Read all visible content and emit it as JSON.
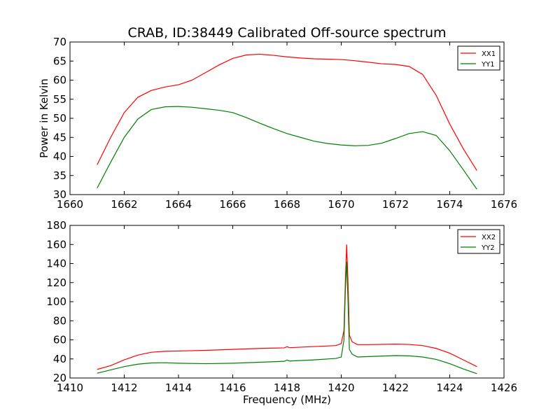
{
  "figure": {
    "title": "CRAB, ID:38449 Calibrated Off-source spectrum"
  },
  "colors": {
    "xx": "#ff0000",
    "yy": "#008000",
    "frame": "#000000",
    "background": "#ffffff"
  },
  "chart_data": [
    {
      "type": "line",
      "title": "CRAB, ID:38449 Calibrated Off-source spectrum",
      "xlabel": "",
      "ylabel": "Power in Kelvin",
      "xlim": [
        1660,
        1676
      ],
      "ylim": [
        30,
        70
      ],
      "xticks": [
        "1660",
        "1662",
        "1664",
        "1666",
        "1668",
        "1670",
        "1672",
        "1674",
        "1676"
      ],
      "yticks": [
        "30",
        "35",
        "40",
        "45",
        "50",
        "55",
        "60",
        "65",
        "70"
      ],
      "grid": false,
      "legend": "top-right",
      "series": [
        {
          "name": "XX1",
          "color": "#ff0000",
          "x": [
            1661.0,
            1661.5,
            1662.0,
            1662.5,
            1663.0,
            1663.5,
            1664.0,
            1664.5,
            1665.0,
            1665.5,
            1666.0,
            1666.5,
            1667.0,
            1667.5,
            1668.0,
            1668.5,
            1669.0,
            1669.5,
            1670.0,
            1670.5,
            1671.0,
            1671.5,
            1672.0,
            1672.5,
            1673.0,
            1673.5,
            1674.0,
            1674.5,
            1675.0
          ],
          "y": [
            37.8,
            45.0,
            51.5,
            55.5,
            57.3,
            58.2,
            58.8,
            60.0,
            62.0,
            64.0,
            65.7,
            66.6,
            66.8,
            66.5,
            66.1,
            65.8,
            65.6,
            65.5,
            65.4,
            65.1,
            64.7,
            64.3,
            64.1,
            63.6,
            61.5,
            56.0,
            48.5,
            42.0,
            36.3
          ]
        },
        {
          "name": "YY1",
          "color": "#008000",
          "x": [
            1661.0,
            1661.5,
            1662.0,
            1662.5,
            1663.0,
            1663.5,
            1664.0,
            1664.5,
            1665.0,
            1665.5,
            1666.0,
            1666.5,
            1667.0,
            1667.5,
            1668.0,
            1668.5,
            1669.0,
            1669.5,
            1670.0,
            1670.5,
            1671.0,
            1671.5,
            1672.0,
            1672.5,
            1673.0,
            1673.5,
            1674.0,
            1674.5,
            1675.0
          ],
          "y": [
            31.7,
            38.5,
            45.0,
            49.8,
            52.3,
            53.0,
            53.1,
            52.9,
            52.5,
            52.1,
            51.5,
            50.2,
            48.7,
            47.3,
            46.0,
            45.0,
            44.0,
            43.4,
            43.0,
            42.8,
            42.9,
            43.5,
            44.7,
            46.0,
            46.5,
            45.5,
            41.5,
            36.5,
            31.4
          ]
        }
      ]
    },
    {
      "type": "line",
      "title": "",
      "xlabel": "Frequency (MHz)",
      "ylabel": "",
      "xlim": [
        1410,
        1426
      ],
      "ylim": [
        20,
        180
      ],
      "xticks": [
        "1410",
        "1412",
        "1414",
        "1416",
        "1418",
        "1420",
        "1422",
        "1424",
        "1426"
      ],
      "yticks": [
        "20",
        "40",
        "60",
        "80",
        "100",
        "120",
        "140",
        "160",
        "180"
      ],
      "grid": false,
      "legend": "top-right",
      "series": [
        {
          "name": "XX2",
          "color": "#ff0000",
          "x": [
            1411.0,
            1411.5,
            1412.0,
            1412.5,
            1413.0,
            1413.5,
            1414.0,
            1415.0,
            1416.0,
            1417.0,
            1417.9,
            1418.0,
            1418.1,
            1419.0,
            1419.8,
            1420.0,
            1420.1,
            1420.15,
            1420.2,
            1420.25,
            1420.3,
            1420.4,
            1420.6,
            1421.0,
            1422.0,
            1422.5,
            1423.0,
            1423.5,
            1424.0,
            1424.5,
            1425.0
          ],
          "y": [
            29.0,
            33.0,
            39.0,
            44.0,
            47.0,
            48.0,
            48.3,
            49.0,
            50.0,
            51.0,
            51.6,
            52.8,
            51.8,
            53.0,
            54.0,
            56.0,
            70.0,
            120.0,
            160.0,
            120.0,
            65.0,
            58.0,
            55.0,
            55.0,
            55.5,
            55.2,
            54.0,
            51.0,
            46.0,
            39.0,
            32.0
          ]
        },
        {
          "name": "YY2",
          "color": "#008000",
          "x": [
            1411.0,
            1411.5,
            1412.0,
            1412.5,
            1413.0,
            1413.5,
            1414.0,
            1415.0,
            1416.0,
            1417.0,
            1417.9,
            1418.0,
            1418.1,
            1419.0,
            1419.8,
            1420.0,
            1420.1,
            1420.15,
            1420.2,
            1420.25,
            1420.3,
            1420.4,
            1420.6,
            1421.0,
            1422.0,
            1422.5,
            1423.0,
            1423.5,
            1424.0,
            1424.5,
            1425.0
          ],
          "y": [
            25.0,
            28.5,
            32.0,
            34.5,
            35.8,
            36.0,
            35.5,
            35.0,
            35.5,
            36.5,
            37.5,
            38.8,
            37.8,
            39.0,
            40.5,
            42.0,
            60.0,
            110.0,
            142.0,
            100.0,
            50.0,
            45.0,
            42.0,
            42.5,
            43.5,
            43.2,
            42.0,
            39.5,
            35.0,
            29.5,
            24.5
          ]
        }
      ]
    }
  ]
}
